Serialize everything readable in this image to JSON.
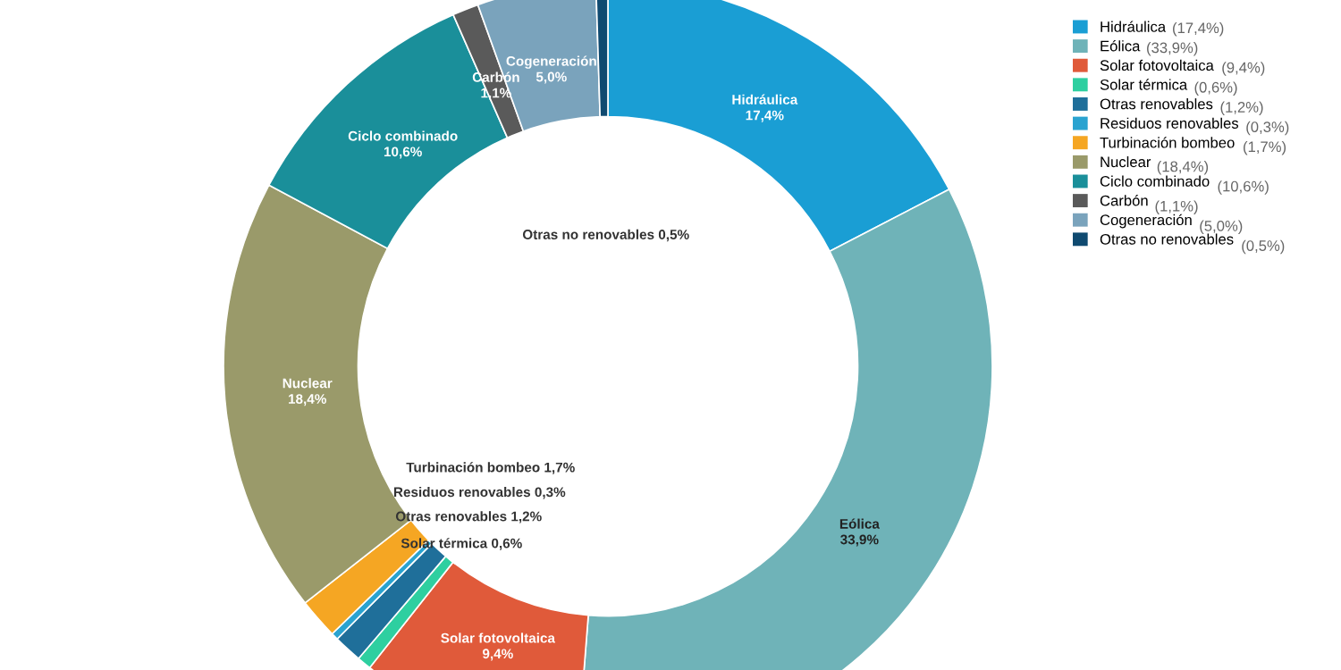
{
  "chart_data": {
    "type": "donut",
    "categories": [
      "Hidráulica",
      "Eólica",
      "Solar fotovoltaica",
      "Solar térmica",
      "Otras renovables",
      "Residuos renovables",
      "Turbinación bombeo",
      "Nuclear",
      "Ciclo combinado",
      "Carbón",
      "Cogeneración",
      "Otras no renovables"
    ],
    "values": [
      17.4,
      33.9,
      9.4,
      0.6,
      1.2,
      0.3,
      1.7,
      18.4,
      10.6,
      1.1,
      5.0,
      0.5
    ],
    "value_labels": [
      "17,4%",
      "33,9%",
      "9,4%",
      "0,6%",
      "1,2%",
      "0,3%",
      "1,7%",
      "18,4%",
      "10,6%",
      "1,1%",
      "5,0%",
      "0,5%"
    ],
    "colors": [
      "#1a9ed4",
      "#6fb3b8",
      "#e05a3a",
      "#2ecfa0",
      "#1f6f9a",
      "#2aa3d0",
      "#f5a623",
      "#9a9a6a",
      "#1a8f9a",
      "#5a5a5a",
      "#7aa3bc",
      "#0f4a70"
    ],
    "annotations": [
      "(17,4%)",
      "(33,9%)",
      "(9,4%)",
      "(0,6%)",
      "(1,2%)",
      "(0,3%)",
      "(1,7%)",
      "(18,4%)",
      "(10,6%)",
      "(1,1%)",
      "(5,0%)",
      "(0,5%)"
    ],
    "legend": "right"
  }
}
